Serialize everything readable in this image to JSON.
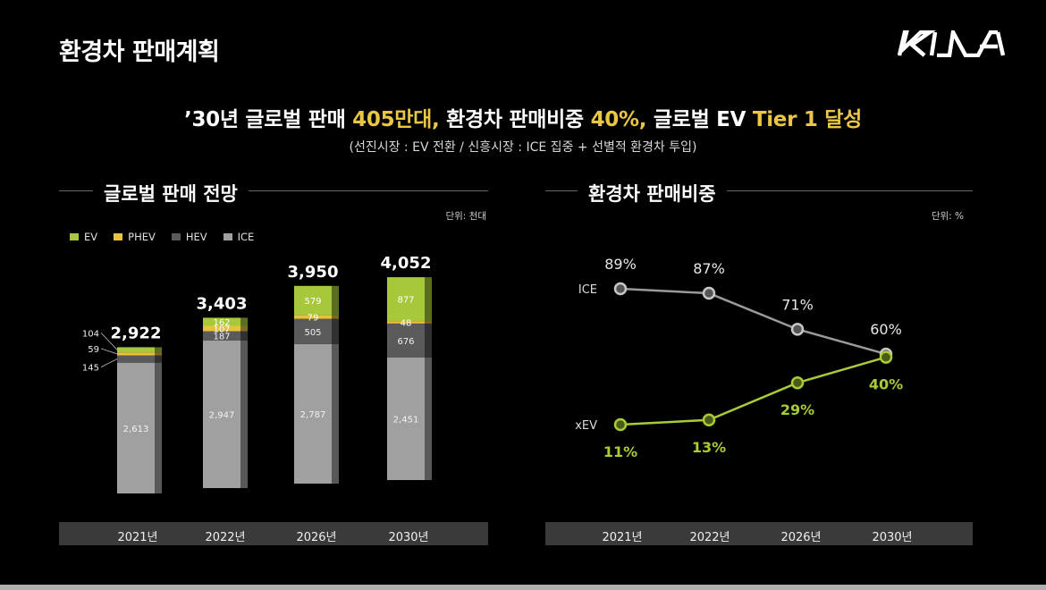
{
  "header": {
    "title": "환경차 판매계획",
    "logo_text": "KIA"
  },
  "headline": {
    "part1": "’30년 글로벌 판매 ",
    "hl1": "405만대,",
    "part2": " 환경차 판매비중 ",
    "hl2": "40%,",
    "part3": " 글로벌 EV ",
    "hl3": "Tier 1 달성",
    "subtitle": "(선진시장 : EV 전환 / 신흥시장 : ICE 집중 + 선별적 환경차 투입)"
  },
  "colors": {
    "accent": "#e9c645",
    "ev": "#a6c83a",
    "phev": "#e8c23a",
    "hev": "#5a5a5a",
    "ice": "#a0a0a0",
    "xev_line": "#a9cc36",
    "ice_line": "#9a9a9a"
  },
  "chart_data": [
    {
      "type": "bar",
      "title": "글로벌 판매 전망",
      "unit": "단위: 천대",
      "categories": [
        "2021년",
        "2022년",
        "2026년",
        "2030년"
      ],
      "series": [
        {
          "name": "ICE",
          "values": [
            2613,
            2947,
            2787,
            2451
          ]
        },
        {
          "name": "HEV",
          "values": [
            145,
            187,
            505,
            676
          ]
        },
        {
          "name": "PHEV",
          "values": [
            59,
            107,
            79,
            48
          ]
        },
        {
          "name": "EV",
          "values": [
            104,
            162,
            579,
            877
          ]
        }
      ],
      "totals": [
        2922,
        3403,
        3950,
        4052
      ],
      "value_labels": {
        "ICE": [
          "2,613",
          "2,947",
          "2,787",
          "2,451"
        ],
        "HEV": [
          "145",
          "187",
          "505",
          "676"
        ],
        "PHEV": [
          "59",
          "107",
          "79",
          "48"
        ],
        "EV": [
          "104",
          "162",
          "579",
          "877"
        ]
      },
      "total_labels": [
        "2,922",
        "3,403",
        "3,950",
        "4,052"
      ],
      "legend": [
        "EV",
        "PHEV",
        "HEV",
        "ICE"
      ],
      "legend_position": "top-left",
      "stacked": true
    },
    {
      "type": "line",
      "title": "환경차 판매비중",
      "unit": "단위: %",
      "categories": [
        "2021년",
        "2022년",
        "2026년",
        "2030년"
      ],
      "series": [
        {
          "name": "ICE",
          "values": [
            89,
            87,
            71,
            60
          ],
          "labels": [
            "89%",
            "87%",
            "71%",
            "60%"
          ]
        },
        {
          "name": "xEV",
          "values": [
            11,
            13,
            29,
            40
          ],
          "labels": [
            "11%",
            "13%",
            "29%",
            "40%"
          ]
        }
      ],
      "ylim": [
        0,
        100
      ]
    }
  ]
}
